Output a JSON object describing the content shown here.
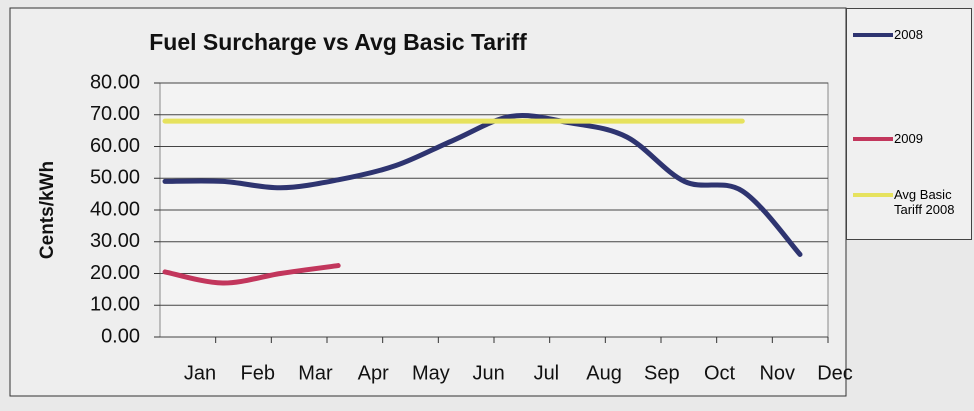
{
  "chart_data": {
    "type": "line",
    "title": "Fuel Surcharge vs Avg Basic Tariff",
    "y_label": "Cents/kWh",
    "categories": [
      "Jan",
      "Feb",
      "Mar",
      "Apr",
      "May",
      "Jun",
      "Jul",
      "Aug",
      "Sep",
      "Oct",
      "Nov",
      "Dec"
    ],
    "series": [
      {
        "name": "2008",
        "color": "#2e3470",
        "values": [
          49,
          49,
          47,
          49.5,
          54,
          62,
          69.5,
          67.5,
          63,
          49,
          46,
          26
        ]
      },
      {
        "name": "2009",
        "color": "#c2365c",
        "values": [
          20.5,
          17,
          20,
          22.5,
          null,
          null,
          null,
          null,
          null,
          null,
          null,
          null
        ]
      },
      {
        "name": "Avg Basic Tariff 2008",
        "color": "#e6e25e",
        "values": [
          68,
          68,
          68,
          68,
          68,
          68,
          68,
          68,
          68,
          68,
          68,
          null
        ]
      }
    ],
    "ylim": [
      0,
      80
    ],
    "yticks": [
      {
        "value": 0,
        "label": "0.00"
      },
      {
        "value": 10,
        "label": "10.00"
      },
      {
        "value": 20,
        "label": "20.00"
      },
      {
        "value": 30,
        "label": "30.00"
      },
      {
        "value": 40,
        "label": "40.00"
      },
      {
        "value": 50,
        "label": "50.00"
      },
      {
        "value": 60,
        "label": "60.00"
      },
      {
        "value": 70,
        "label": "70.00"
      },
      {
        "value": 80,
        "label": "80.00"
      }
    ],
    "grid": true,
    "legend": "right"
  }
}
